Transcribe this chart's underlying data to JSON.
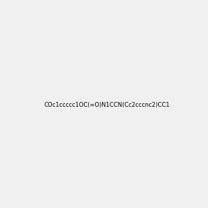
{
  "smiles": "COc1ccccc1OC(=O)N1CCN(Cc2cccnc2)CC1",
  "background_color": "#f0f0f0",
  "title": "",
  "figsize": [
    3.0,
    3.0
  ],
  "dpi": 100
}
